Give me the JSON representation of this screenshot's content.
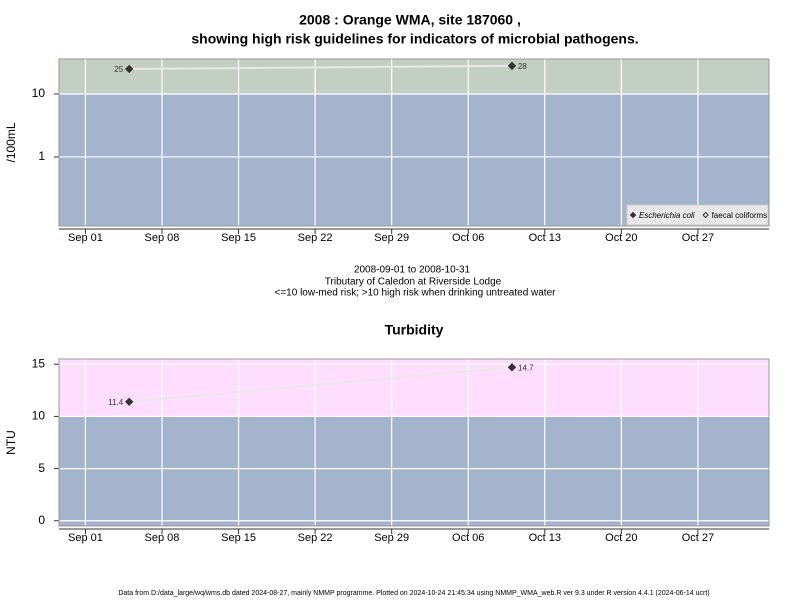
{
  "chart_data": [
    {
      "type": "line",
      "title": [
        "2008 : Orange WMA, site 187060 ,",
        "showing high risk guidelines for indicators of microbial pathogens."
      ],
      "subtitle": [
        "2008-09-01 to 2008-10-31",
        "Tributary of Caledon at Riverside Lodge",
        "<=10 low-med risk; >10 high risk when drinking untreated water"
      ],
      "ylabel": "/100mL",
      "log_y": true,
      "x": [
        "2008-09-05",
        "2008-10-10"
      ],
      "series": [
        {
          "name": "Escherichia coli",
          "color": "#333333",
          "line_color": "#e8e8e8",
          "open": false,
          "values": [
            25,
            28
          ]
        },
        {
          "name": "faecal coliforms",
          "color": "#333333",
          "line_color": "#e8e8e8",
          "open": true,
          "values": [
            null,
            null
          ]
        }
      ],
      "xlim": [
        "2008-08-29T14:00",
        "2008-11-02T12:00"
      ],
      "xticks": [
        {
          "value": "2008-09-01",
          "label": "Sep 01"
        },
        {
          "value": "2008-09-08",
          "label": "Sep 08"
        },
        {
          "value": "2008-09-15",
          "label": "Sep 15"
        },
        {
          "value": "2008-09-22",
          "label": "Sep 22"
        },
        {
          "value": "2008-09-29",
          "label": "Sep 29"
        },
        {
          "value": "2008-10-06",
          "label": "Oct 06"
        },
        {
          "value": "2008-10-13",
          "label": "Oct 13"
        },
        {
          "value": "2008-10-20",
          "label": "Oct 20"
        },
        {
          "value": "2008-10-27",
          "label": "Oct 27"
        }
      ],
      "ylim": [
        0.08,
        36
      ],
      "yticks": [
        1,
        10
      ],
      "threshold": 10,
      "background_color": "#a3b4cc",
      "band_color": "#c4cfc4",
      "grid": true,
      "legend": "bottom right"
    },
    {
      "type": "line",
      "title": "Turbidity",
      "ylabel": "NTU",
      "log_y": false,
      "x": [
        "2008-09-05",
        "2008-10-10"
      ],
      "series": [
        {
          "color": "#333333",
          "line_color": "#e8e8e8",
          "open": false,
          "values": [
            11.4,
            14.7
          ]
        }
      ],
      "xlim": [
        "2008-08-29T14:00",
        "2008-11-02T12:00"
      ],
      "xticks": [
        {
          "value": "2008-09-01",
          "label": "Sep 01"
        },
        {
          "value": "2008-09-08",
          "label": "Sep 08"
        },
        {
          "value": "2008-09-15",
          "label": "Sep 15"
        },
        {
          "value": "2008-09-22",
          "label": "Sep 22"
        },
        {
          "value": "2008-09-29",
          "label": "Sep 29"
        },
        {
          "value": "2008-10-06",
          "label": "Oct 06"
        },
        {
          "value": "2008-10-13",
          "label": "Oct 13"
        },
        {
          "value": "2008-10-20",
          "label": "Oct 20"
        },
        {
          "value": "2008-10-27",
          "label": "Oct 27"
        }
      ],
      "ylim": [
        -0.5,
        15.5
      ],
      "yticks": [
        0,
        5,
        10,
        15
      ],
      "threshold": 10,
      "background_color": "#a3b4cc",
      "band_color": "#ffddff",
      "grid": true
    }
  ],
  "footer": "Data from D:/data_large/wq/wms.db dated 2024-08-27, mainly NMMP programme. Plotted on 2024-10-24 21:45:34 using NMMP_WMA_web.R ver 9.3 under R version 4.4.1 (2024-06-14 ucrt)"
}
